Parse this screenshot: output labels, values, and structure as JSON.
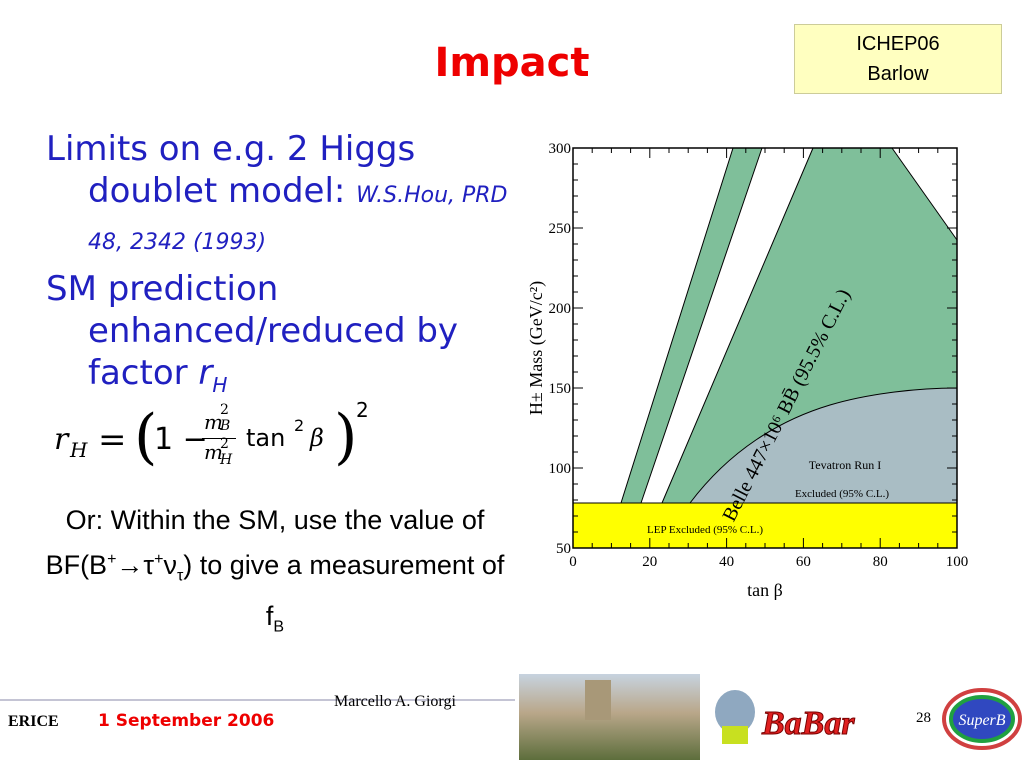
{
  "header": {
    "title": "Impact",
    "badge": [
      "ICHEP06",
      "Barlow"
    ]
  },
  "bullets": [
    {
      "text": "Limits  on e.g. 2 Higgs doublet model: ",
      "ref": "W.S.Hou, PRD 48, 2342 (1993)"
    },
    {
      "text": "SM prediction enhanced/reduced by factor ",
      "var": "r",
      "sub": "H"
    }
  ],
  "formula": {
    "lhs": "r",
    "lhs_sub": "H",
    "eq": "=",
    "one": "1 −",
    "num": "m",
    "num_sub": "B",
    "num_sup": "2",
    "den": "m",
    "den_sub": "H",
    "den_sup": "2",
    "fn": "tan",
    "fn_sup": "2",
    "arg": "β",
    "outer_sup": "2"
  },
  "note": [
    {
      "t": "Or: Within the SM, use the value of BF(B"
    },
    {
      "t": "+",
      "k": "sup"
    },
    {
      "t": "→τ"
    },
    {
      "t": "+",
      "k": "sup"
    },
    {
      "t": "ν"
    },
    {
      "t": "τ",
      "k": "sub"
    },
    {
      "t": ") to give a measurement of f"
    },
    {
      "t": "B",
      "k": "sub"
    }
  ],
  "plot": {
    "xlabel": "tan β",
    "ylabel": "H± Mass (GeV/c²)",
    "xlim": [
      0,
      100
    ],
    "ylim": [
      50,
      300
    ],
    "xticks": [
      0,
      20,
      40,
      60,
      80,
      100
    ],
    "yticks": [
      50,
      100,
      150,
      200,
      250,
      300
    ],
    "annotations": [
      "Belle 447×10⁶ BB̄ (95.5% C.L.)",
      "Tevatron Run I",
      "Excluded (95% C.L.)",
      "LEP Excluded (95% C.L.)"
    ]
  },
  "footer": {
    "place": "ERICE",
    "date": "1 September 2006",
    "author": "Marcello A. Giorgi",
    "page": "28",
    "logo": "BaBar",
    "logo2": "SuperB"
  }
}
